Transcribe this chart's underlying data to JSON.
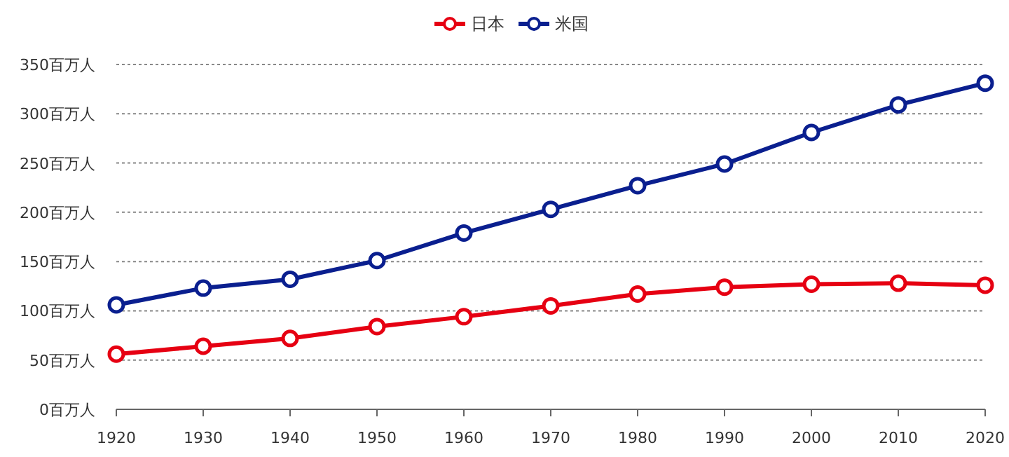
{
  "chart_data": {
    "type": "line",
    "x": [
      1920,
      1930,
      1940,
      1950,
      1960,
      1970,
      1980,
      1990,
      2000,
      2010,
      2020
    ],
    "series": [
      {
        "name": "日本",
        "color": "#e60012",
        "values": [
          56,
          64,
          72,
          84,
          94,
          105,
          117,
          124,
          127,
          128,
          126
        ]
      },
      {
        "name": "米国",
        "color": "#0a1f8f",
        "values": [
          106,
          123,
          132,
          151,
          179,
          203,
          227,
          249,
          281,
          309,
          331
        ]
      }
    ],
    "xlim": [
      1920,
      2020
    ],
    "xticks": [
      1920,
      1930,
      1940,
      1950,
      1960,
      1970,
      1980,
      1990,
      2000,
      2010,
      2020
    ],
    "ylim": [
      0,
      350
    ],
    "yticks": [
      {
        "value": 0,
        "label": "0百万人"
      },
      {
        "value": 50,
        "label": "50百万人"
      },
      {
        "value": 100,
        "label": "100百万人"
      },
      {
        "value": 150,
        "label": "150百万人"
      },
      {
        "value": 200,
        "label": "200百万人"
      },
      {
        "value": 250,
        "label": "250百万人"
      },
      {
        "value": 300,
        "label": "300百万人"
      },
      {
        "value": 350,
        "label": "350百万人"
      }
    ],
    "grid": "y",
    "legend": "top",
    "marker": "circle",
    "line_style": "solid"
  }
}
